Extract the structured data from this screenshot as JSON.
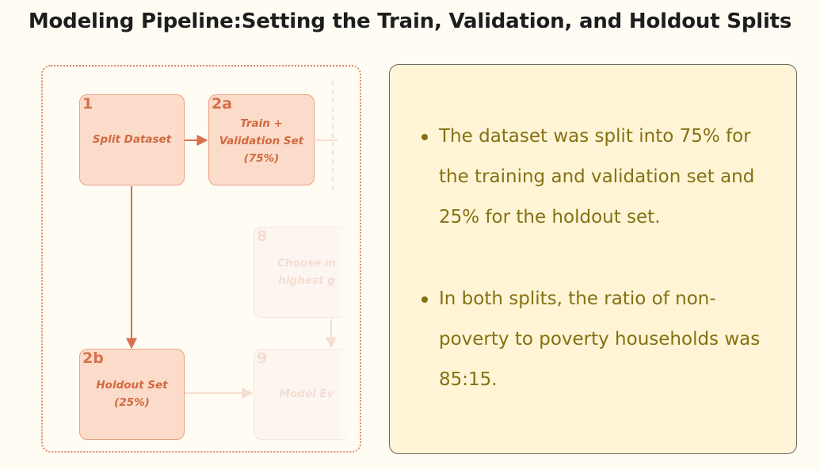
{
  "title": "Modeling Pipeline:Setting the Train, Validation, and Holdout Splits",
  "colors": {
    "page_background": "#fffcf4",
    "node_fill": "#fbdccb",
    "node_border": "#e9a184",
    "node_text": "#d2683f",
    "arrow": "#d9714a",
    "panel_fill": "#fff5d6",
    "bullet_text": "#857013"
  },
  "diagram": {
    "nodes": [
      {
        "id": "1",
        "lines": [
          "Split Dataset"
        ],
        "faded": false
      },
      {
        "id": "2a",
        "lines": [
          "Train +",
          "Validation Set",
          "(75%)"
        ],
        "faded": false
      },
      {
        "id": "2b",
        "lines": [
          "Holdout Set",
          "(25%)"
        ],
        "faded": false
      },
      {
        "id": "8",
        "lines": [
          "Choose m",
          "highest g"
        ],
        "faded": true
      },
      {
        "id": "9",
        "lines": [
          "Model Ev"
        ],
        "faded": true
      }
    ]
  },
  "bullets": [
    "The dataset was split into 75% for the training and validation set and 25% for the holdout set.",
    "In both splits, the ratio of non-poverty to poverty households was 85:15."
  ]
}
